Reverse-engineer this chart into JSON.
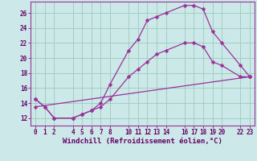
{
  "xlabel": "Windchill (Refroidissement éolien,°C)",
  "background_color": "#cce8e8",
  "grid_color": "#99ccbb",
  "line_color": "#993399",
  "xlim": [
    -0.5,
    23.5
  ],
  "ylim": [
    11.0,
    27.5
  ],
  "xtick_positions": [
    0,
    1,
    2,
    4,
    5,
    6,
    7,
    8,
    10,
    11,
    12,
    13,
    14,
    16,
    17,
    18,
    19,
    20,
    22,
    23
  ],
  "xtick_labels": [
    "0",
    "1",
    "2",
    "4",
    "5",
    "6",
    "7",
    "8",
    "10",
    "11",
    "12",
    "13",
    "14",
    "16",
    "17",
    "18",
    "19",
    "20",
    "22",
    "23"
  ],
  "ytick_positions": [
    12,
    14,
    16,
    18,
    20,
    22,
    24,
    26
  ],
  "ytick_labels": [
    "12",
    "14",
    "16",
    "18",
    "20",
    "22",
    "24",
    "26"
  ],
  "line1_x": [
    0,
    1,
    2,
    4,
    5,
    6,
    7,
    8,
    10,
    11,
    12,
    13,
    14,
    16,
    17,
    18,
    19,
    20,
    22,
    23
  ],
  "line1_y": [
    14.5,
    13.5,
    12.0,
    12.0,
    12.5,
    13.0,
    14.0,
    16.5,
    21.0,
    22.5,
    25.0,
    25.5,
    26.0,
    27.0,
    27.0,
    26.5,
    23.5,
    22.0,
    19.0,
    17.5
  ],
  "line2_x": [
    0,
    1,
    2,
    4,
    5,
    6,
    7,
    8,
    10,
    11,
    12,
    13,
    14,
    16,
    17,
    18,
    19,
    20,
    22,
    23
  ],
  "line2_y": [
    14.5,
    13.5,
    12.0,
    12.0,
    12.5,
    13.0,
    13.5,
    14.5,
    17.5,
    18.5,
    19.5,
    20.5,
    21.0,
    22.0,
    22.0,
    21.5,
    19.5,
    19.0,
    17.5,
    17.5
  ],
  "line3_x": [
    0,
    23
  ],
  "line3_y": [
    13.5,
    17.5
  ],
  "marker_size": 2.5,
  "linewidth": 0.9,
  "font_size_label": 6.5,
  "font_size_tick": 5.5
}
